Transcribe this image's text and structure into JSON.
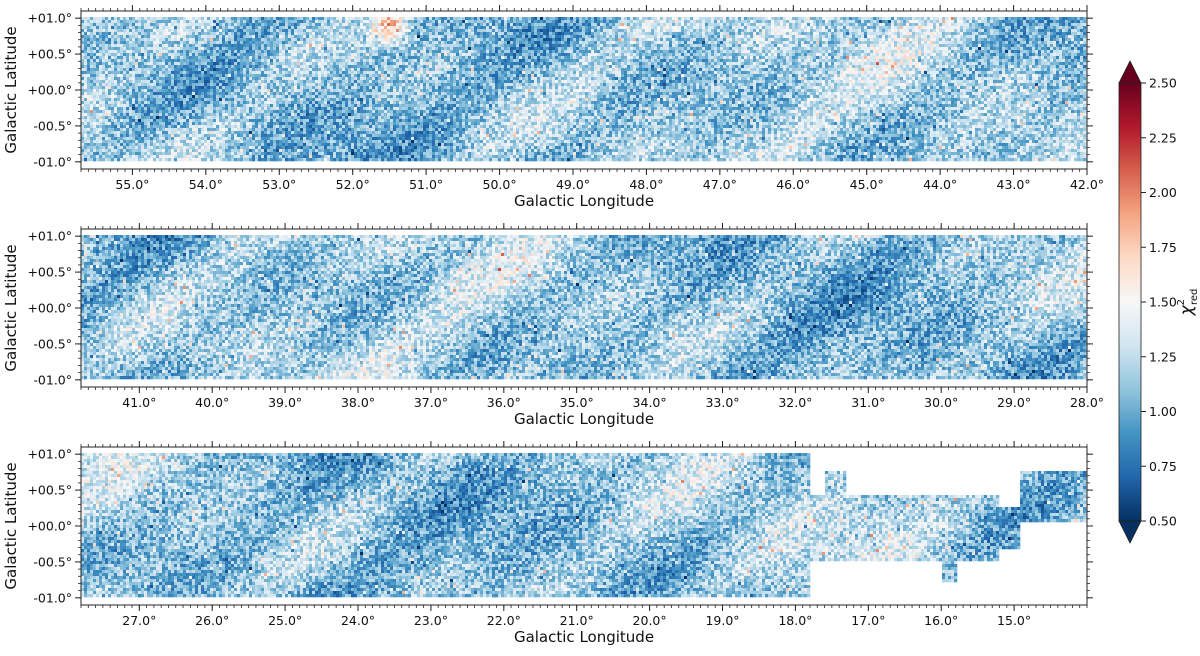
{
  "chart_data": {
    "type": "heatmap",
    "panels": [
      {
        "name": "panel-1",
        "xlim": [
          55.7,
          42.0
        ],
        "ylim": [
          -1.1,
          1.1
        ],
        "xticks": [
          55,
          54,
          53,
          52,
          51,
          50,
          49,
          48,
          47,
          46,
          45,
          44,
          43,
          42
        ],
        "xtick_labels": [
          "55.0°",
          "54.0°",
          "53.0°",
          "52.0°",
          "51.0°",
          "50.0°",
          "49.0°",
          "48.0°",
          "47.0°",
          "46.0°",
          "45.0°",
          "44.0°",
          "43.0°",
          "42.0°"
        ],
        "yticks": [
          1,
          0.5,
          0,
          -0.5,
          -1
        ],
        "ytick_labels": [
          "+01.0°",
          "+00.5°",
          "+00.0°",
          "-00.5°",
          "-01.0°"
        ],
        "coverage": [
          [
            55.7,
            42.0,
            -1.0,
            1.0
          ]
        ],
        "hotspots": [
          [
            51.5,
            0.9
          ],
          [
            37.0,
            0.6
          ]
        ],
        "xlabel": "Galactic Longitude",
        "ylabel": "Galactic Latitude"
      },
      {
        "name": "panel-2",
        "xlim": [
          41.8,
          28.0
        ],
        "ylim": [
          -1.1,
          1.1
        ],
        "xticks": [
          41,
          40,
          39,
          38,
          37,
          36,
          35,
          34,
          33,
          32,
          31,
          30,
          29,
          28
        ],
        "xtick_labels": [
          "41.0°",
          "40.0°",
          "39.0°",
          "38.0°",
          "37.0°",
          "36.0°",
          "35.0°",
          "34.0°",
          "33.0°",
          "32.0°",
          "31.0°",
          "30.0°",
          "29.0°",
          "28.0°"
        ],
        "yticks": [
          1,
          0.5,
          0,
          -0.5,
          -1
        ],
        "ytick_labels": [
          "+01.0°",
          "+00.5°",
          "+00.0°",
          "-00.5°",
          "-01.0°"
        ],
        "coverage": [
          [
            41.8,
            28.0,
            -1.0,
            1.0
          ]
        ],
        "xlabel": "Galactic Longitude",
        "ylabel": "Galactic Latitude"
      },
      {
        "name": "panel-3",
        "xlim": [
          27.8,
          14.0
        ],
        "ylim": [
          -1.1,
          1.1
        ],
        "xticks": [
          27,
          26,
          25,
          24,
          23,
          22,
          21,
          20,
          19,
          18,
          17,
          16,
          15
        ],
        "xtick_labels": [
          "27.0°",
          "26.0°",
          "25.0°",
          "24.0°",
          "23.0°",
          "22.0°",
          "21.0°",
          "20.0°",
          "19.0°",
          "18.0°",
          "17.0°",
          "16.0°",
          "15.0°"
        ],
        "yticks": [
          1,
          0.5,
          0,
          -0.5,
          -1
        ],
        "ytick_labels": [
          "+01.0°",
          "+00.5°",
          "+00.0°",
          "-00.5°",
          "-01.0°"
        ],
        "coverage": [
          [
            27.8,
            17.8,
            -1.0,
            1.0
          ],
          [
            17.8,
            17.6,
            -0.5,
            0.45
          ],
          [
            17.6,
            17.3,
            -0.5,
            0.75
          ],
          [
            17.3,
            15.2,
            -0.5,
            0.45
          ],
          [
            16.0,
            15.8,
            -0.8,
            -0.5
          ],
          [
            15.2,
            14.9,
            -0.3,
            0.25
          ],
          [
            14.9,
            14.0,
            0.05,
            0.75
          ]
        ],
        "xlabel": "Galactic Longitude",
        "ylabel": "Galactic Latitude"
      }
    ],
    "colorbar": {
      "label": "χ²red",
      "symbol": "χ",
      "superscript": "2",
      "subscript": "red",
      "range": [
        0.5,
        2.5
      ],
      "ticks": [
        0.5,
        0.75,
        1.0,
        1.25,
        1.5,
        1.75,
        2.0,
        2.25,
        2.5
      ],
      "tick_labels": [
        "0.50",
        "0.75",
        "1.00",
        "1.25",
        "1.50",
        "1.75",
        "2.00",
        "2.25",
        "2.50"
      ],
      "extend": "both",
      "colormap": "RdBu_r",
      "colors": [
        "#053061",
        "#2166ac",
        "#4393c3",
        "#92c5de",
        "#d1e5f0",
        "#f7f7f7",
        "#fddbc7",
        "#f4a582",
        "#d6604d",
        "#b2182b",
        "#67001f"
      ]
    }
  }
}
